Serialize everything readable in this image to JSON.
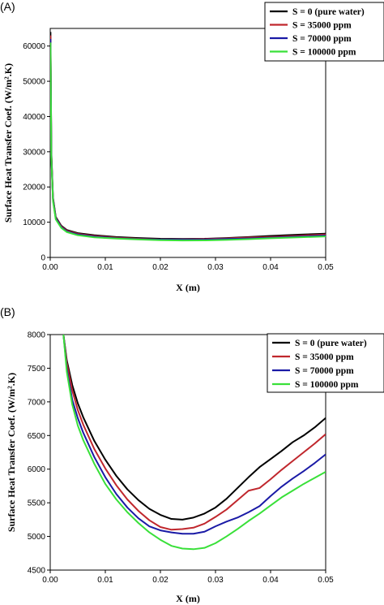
{
  "chart_data": [
    {
      "type": "line",
      "panel_label": "(A)",
      "xlabel": "X (m)",
      "ylabel": "Surface Heat Transfer Coef. (W/m².K)",
      "xlim": [
        0,
        0.05
      ],
      "ylim": [
        0,
        65000
      ],
      "xticks": [
        "0.00",
        "0.01",
        "0.02",
        "0.03",
        "0.04",
        "0.05"
      ],
      "yticks": [
        "0",
        "10000",
        "20000",
        "30000",
        "40000",
        "50000",
        "60000"
      ],
      "legend_position": "top-right",
      "grid": false,
      "series": [
        {
          "name": "S = 0 (pure water)",
          "color": "#000000",
          "x": [
            5e-05,
            0.0002,
            0.0005,
            0.001,
            0.002,
            0.003,
            0.005,
            0.008,
            0.012,
            0.016,
            0.02,
            0.024,
            0.028,
            0.032,
            0.036,
            0.04,
            0.045,
            0.05
          ],
          "y": [
            64000,
            30000,
            17000,
            11500,
            9000,
            7800,
            6900,
            6300,
            5800,
            5500,
            5300,
            5250,
            5300,
            5500,
            5800,
            6100,
            6450,
            6750
          ]
        },
        {
          "name": "S = 35000 ppm",
          "color": "#c0272d",
          "x": [
            5e-05,
            0.0002,
            0.0005,
            0.001,
            0.002,
            0.003,
            0.005,
            0.008,
            0.012,
            0.016,
            0.02,
            0.024,
            0.028,
            0.032,
            0.036,
            0.04,
            0.045,
            0.05
          ],
          "y": [
            63000,
            29500,
            16700,
            11300,
            8800,
            7600,
            6700,
            6100,
            5600,
            5300,
            5100,
            5100,
            5200,
            5400,
            5650,
            5800,
            6150,
            6520
          ]
        },
        {
          "name": "S = 70000 ppm",
          "color": "#1a1aa6",
          "x": [
            5e-05,
            0.0002,
            0.0005,
            0.001,
            0.002,
            0.003,
            0.005,
            0.008,
            0.012,
            0.016,
            0.02,
            0.024,
            0.028,
            0.032,
            0.036,
            0.04,
            0.045,
            0.05
          ],
          "y": [
            62000,
            29000,
            16400,
            11100,
            8600,
            7400,
            6500,
            5900,
            5450,
            5200,
            5080,
            5030,
            5060,
            5250,
            5380,
            5600,
            5900,
            6220
          ]
        },
        {
          "name": "S = 100000 ppm",
          "color": "#39e039",
          "x": [
            5e-05,
            0.0002,
            0.0005,
            0.001,
            0.002,
            0.003,
            0.005,
            0.008,
            0.012,
            0.016,
            0.02,
            0.024,
            0.028,
            0.032,
            0.036,
            0.04,
            0.045,
            0.05
          ],
          "y": [
            61000,
            28500,
            16000,
            10800,
            8400,
            7200,
            6300,
            5700,
            5350,
            5100,
            4900,
            4800,
            4830,
            4980,
            5200,
            5450,
            5700,
            5960
          ]
        }
      ]
    },
    {
      "type": "line",
      "panel_label": "(B)",
      "xlabel": "X (m)",
      "ylabel": "Surface Heat Transfer Coef. (W/m².K)",
      "xlim": [
        0,
        0.05
      ],
      "ylim": [
        4500,
        8000
      ],
      "xticks": [
        "0.00",
        "0.01",
        "0.02",
        "0.03",
        "0.04",
        "0.05"
      ],
      "yticks": [
        "4500",
        "5000",
        "5500",
        "6000",
        "6500",
        "7000",
        "7500",
        "8000"
      ],
      "legend_position": "top-right",
      "grid": false,
      "series": [
        {
          "name": "S = 0 (pure water)",
          "color": "#000000",
          "x": [
            0.0024,
            0.003,
            0.004,
            0.005,
            0.006,
            0.008,
            0.01,
            0.012,
            0.014,
            0.016,
            0.018,
            0.02,
            0.022,
            0.024,
            0.026,
            0.028,
            0.03,
            0.032,
            0.034,
            0.036,
            0.038,
            0.04,
            0.042,
            0.044,
            0.046,
            0.048,
            0.05
          ],
          "y": [
            8000,
            7620,
            7250,
            6980,
            6770,
            6420,
            6140,
            5900,
            5700,
            5540,
            5410,
            5320,
            5260,
            5250,
            5280,
            5340,
            5430,
            5560,
            5720,
            5880,
            6030,
            6150,
            6270,
            6400,
            6500,
            6620,
            6760
          ]
        },
        {
          "name": "S = 35000 ppm",
          "color": "#c0272d",
          "x": [
            0.0024,
            0.003,
            0.004,
            0.005,
            0.006,
            0.008,
            0.01,
            0.012,
            0.014,
            0.016,
            0.018,
            0.02,
            0.022,
            0.024,
            0.026,
            0.028,
            0.03,
            0.032,
            0.034,
            0.036,
            0.038,
            0.04,
            0.042,
            0.044,
            0.046,
            0.048,
            0.05
          ],
          "y": [
            8000,
            7580,
            7170,
            6880,
            6660,
            6300,
            6010,
            5760,
            5550,
            5380,
            5240,
            5140,
            5100,
            5110,
            5130,
            5190,
            5290,
            5400,
            5540,
            5680,
            5720,
            5850,
            5990,
            6120,
            6250,
            6380,
            6520
          ]
        },
        {
          "name": "S = 70000 ppm",
          "color": "#1a1aa6",
          "x": [
            0.0024,
            0.003,
            0.004,
            0.005,
            0.006,
            0.008,
            0.01,
            0.012,
            0.014,
            0.016,
            0.018,
            0.02,
            0.022,
            0.024,
            0.026,
            0.028,
            0.03,
            0.032,
            0.034,
            0.036,
            0.038,
            0.04,
            0.042,
            0.044,
            0.046,
            0.048,
            0.05
          ],
          "y": [
            8000,
            7500,
            7030,
            6760,
            6540,
            6180,
            5880,
            5630,
            5430,
            5270,
            5150,
            5090,
            5060,
            5040,
            5040,
            5070,
            5150,
            5220,
            5280,
            5360,
            5450,
            5600,
            5740,
            5860,
            5970,
            6090,
            6220
          ]
        },
        {
          "name": "S = 100000 ppm",
          "color": "#39e039",
          "x": [
            0.0024,
            0.003,
            0.004,
            0.005,
            0.006,
            0.008,
            0.01,
            0.012,
            0.014,
            0.016,
            0.018,
            0.02,
            0.022,
            0.024,
            0.026,
            0.028,
            0.03,
            0.032,
            0.034,
            0.036,
            0.038,
            0.04,
            0.042,
            0.044,
            0.046,
            0.048,
            0.05
          ],
          "y": [
            8000,
            7450,
            6960,
            6650,
            6430,
            6080,
            5780,
            5550,
            5360,
            5200,
            5060,
            4950,
            4860,
            4820,
            4810,
            4830,
            4900,
            5000,
            5110,
            5230,
            5340,
            5460,
            5580,
            5680,
            5780,
            5870,
            5960
          ]
        }
      ]
    }
  ]
}
